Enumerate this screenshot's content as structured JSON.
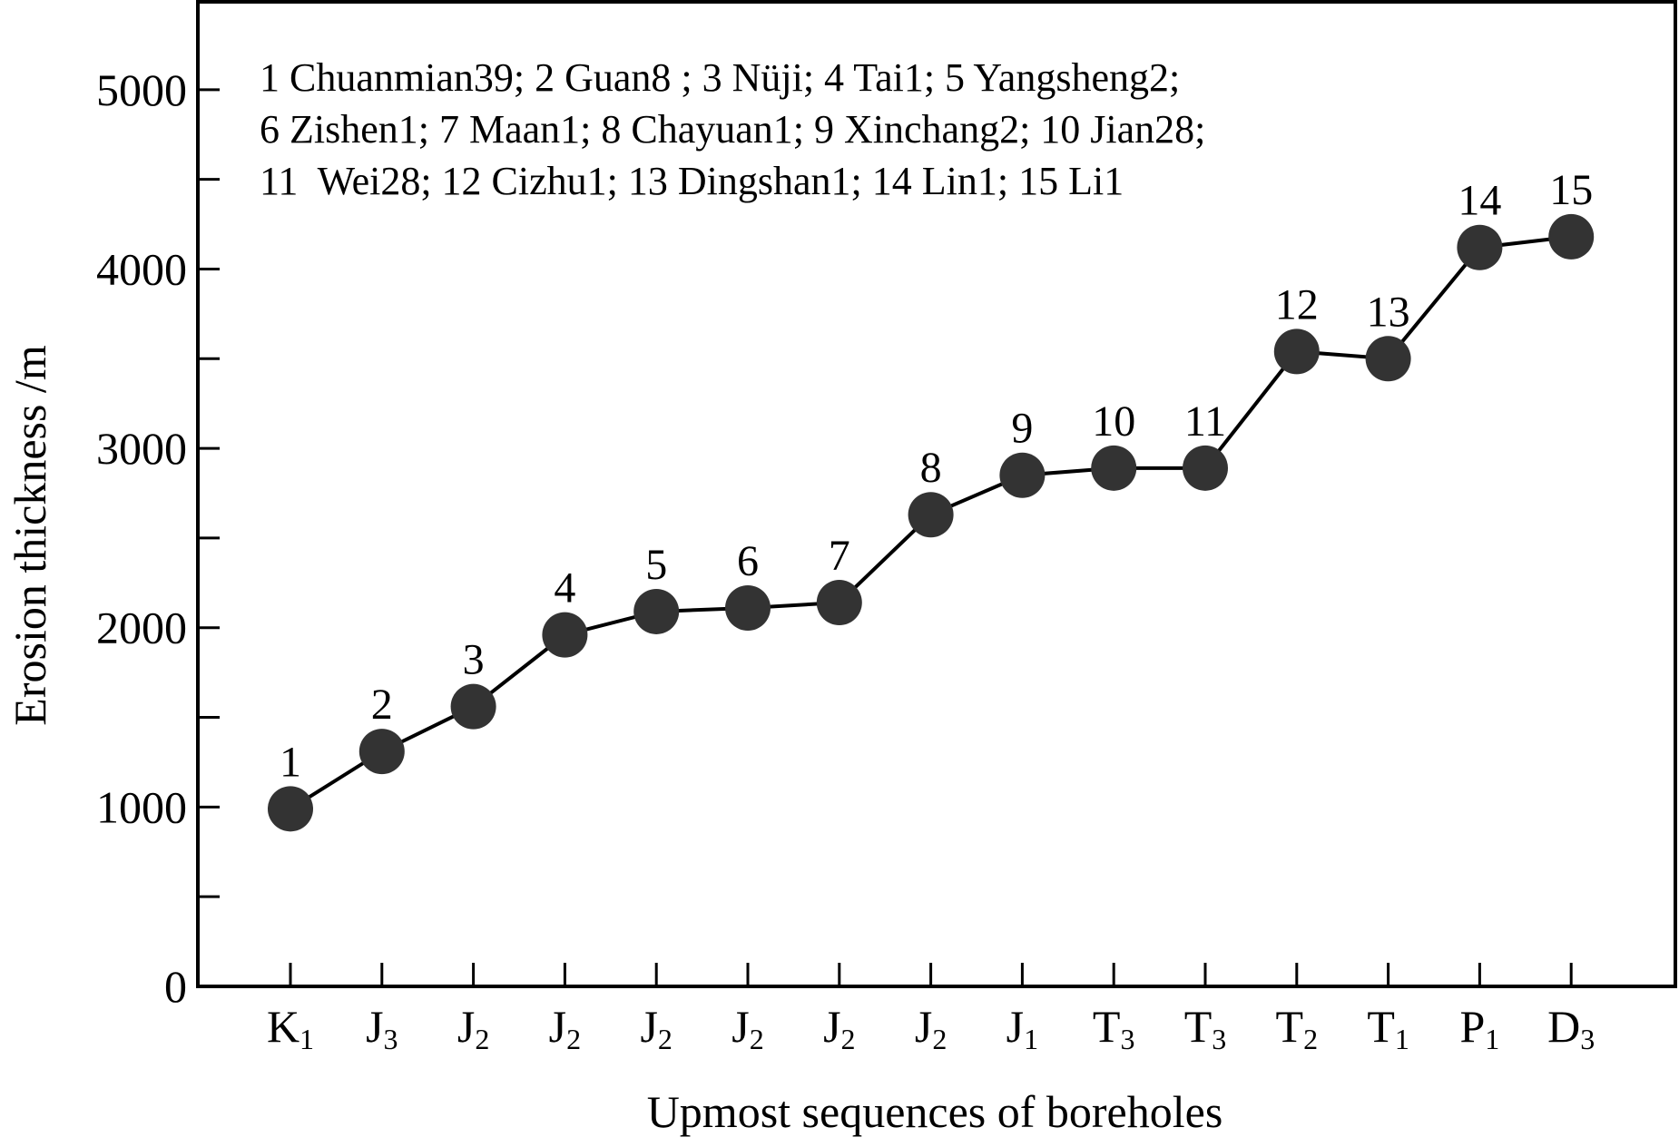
{
  "chart_data": {
    "type": "line",
    "xlabel": "Upmost  sequences of boreholes",
    "ylabel": "Erosion thickness /m",
    "ylim": [
      0,
      5500
    ],
    "y_ticks": [
      0,
      1000,
      2000,
      3000,
      4000,
      5000
    ],
    "grid": false,
    "legend_lines": [
      "1 Chuanmian39; 2 Guan8 ; 3 Nüji; 4 Tai1; 5 Yangsheng2;",
      "6 Zishen1; 7 Maan1; 8 Chayuan1; 9 Xinchang2; 10 Jian28;",
      "11  Wei28; 12 Cizhu1; 13 Dingshan1; 14 Lin1; 15 Li1"
    ],
    "legend_position": "top-left",
    "categories": [
      {
        "main": "K",
        "sub": "1"
      },
      {
        "main": "J",
        "sub": "3"
      },
      {
        "main": "J",
        "sub": "2"
      },
      {
        "main": "J",
        "sub": "2"
      },
      {
        "main": "J",
        "sub": "2"
      },
      {
        "main": "J",
        "sub": "2"
      },
      {
        "main": "J",
        "sub": "2"
      },
      {
        "main": "J",
        "sub": "2"
      },
      {
        "main": "J",
        "sub": "1"
      },
      {
        "main": "T",
        "sub": "3"
      },
      {
        "main": "T",
        "sub": "3"
      },
      {
        "main": "T",
        "sub": "2"
      },
      {
        "main": "T",
        "sub": "1"
      },
      {
        "main": "P",
        "sub": "1"
      },
      {
        "main": "D",
        "sub": "3"
      }
    ],
    "series": [
      {
        "point_labels": [
          "1",
          "2",
          "3",
          "4",
          "5",
          "6",
          "7",
          "8",
          "9",
          "10",
          "11",
          "12",
          "13",
          "14",
          "15"
        ],
        "values": [
          990,
          1310,
          1560,
          1960,
          2090,
          2110,
          2140,
          2630,
          2850,
          2890,
          2890,
          3540,
          3500,
          4120,
          4180
        ],
        "color": "#333333"
      }
    ]
  }
}
